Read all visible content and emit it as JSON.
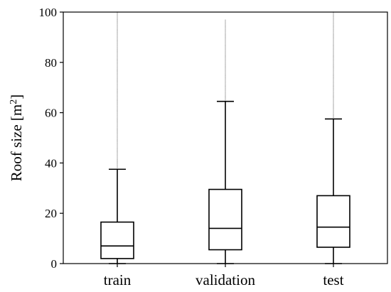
{
  "chart_data": {
    "type": "box",
    "categories": [
      "train",
      "validation",
      "test"
    ],
    "ylabel": "Roof size [m",
    "ylabel_sup": "2",
    "ylabel_suffix": "]",
    "ylim": [
      0,
      100
    ],
    "yticks": [
      "0",
      "20",
      "40",
      "60",
      "80",
      "100"
    ],
    "grid": false,
    "boxes": [
      {
        "name": "train",
        "whisker_low": 0,
        "q1": 2,
        "median": 7,
        "q3": 16.5,
        "whisker_high": 37.5,
        "outliers_from": 38,
        "outliers_to": 100
      },
      {
        "name": "validation",
        "whisker_low": 0,
        "q1": 5.5,
        "median": 14,
        "q3": 29.5,
        "whisker_high": 64.5,
        "outliers_from": 65,
        "outliers_to": 97
      },
      {
        "name": "test",
        "whisker_low": 0,
        "q1": 6.5,
        "median": 14.5,
        "q3": 27,
        "whisker_high": 57.5,
        "outliers_from": 58,
        "outliers_to": 100
      }
    ],
    "colors": {
      "box_edge": "#000000",
      "outlier": "#000000"
    }
  }
}
